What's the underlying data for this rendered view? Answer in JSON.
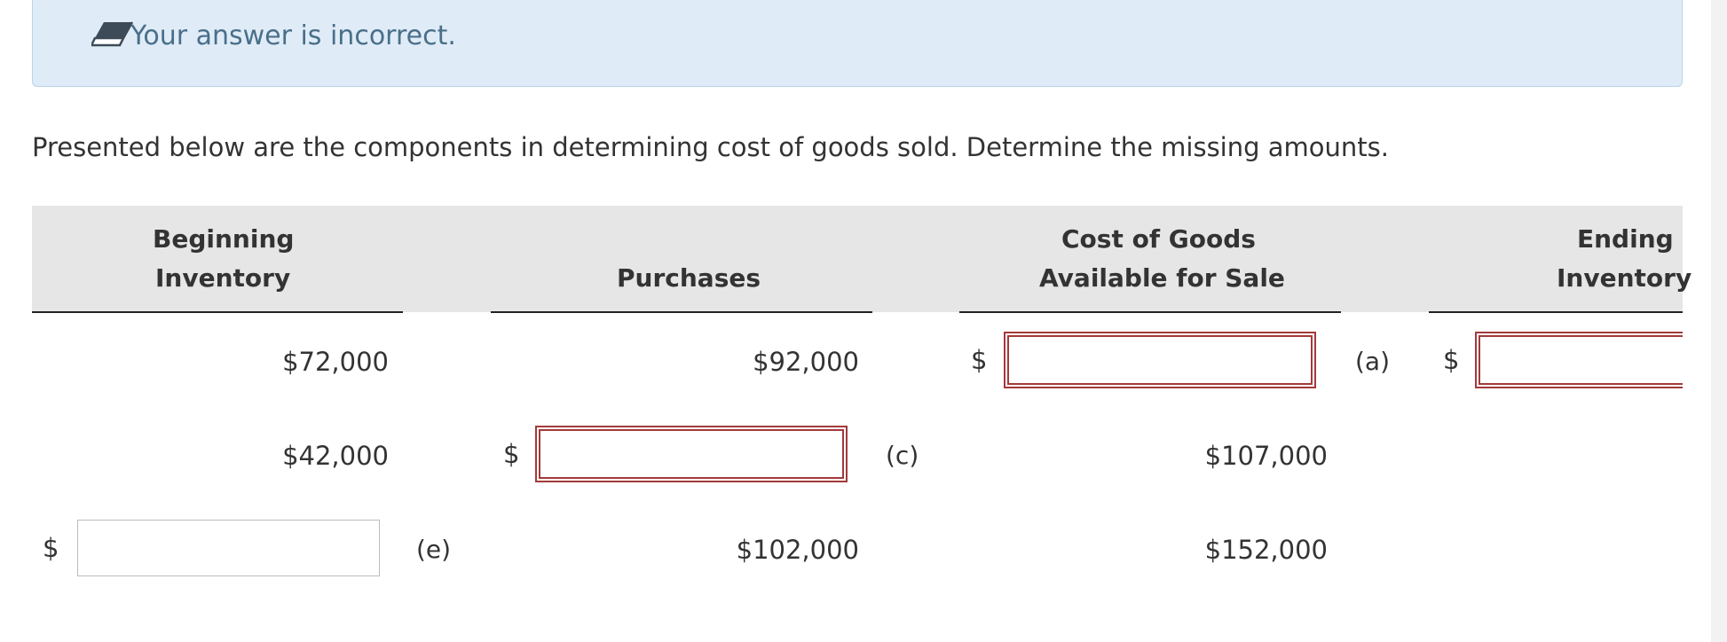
{
  "feedback": {
    "icon": "eraser-icon",
    "message": "Your answer is incorrect."
  },
  "question": {
    "prompt": "Presented below are the components in determining cost of goods sold. Determine the missing amounts."
  },
  "table": {
    "headers": {
      "beginning_inventory_line1": "Beginning",
      "beginning_inventory_line2": "Inventory",
      "purchases": "Purchases",
      "cogas_line1": "Cost of Goods",
      "cogas_line2": "Available for Sale",
      "ending_inventory_line1": "Ending",
      "ending_inventory_line2": "Inventory"
    },
    "currency_symbol": "$",
    "rows": [
      {
        "beginning_inventory": "$72,000",
        "purchases": "$92,000",
        "cogas_input": "",
        "cogas_label": "(a)",
        "ending_inventory_input": ""
      },
      {
        "beginning_inventory": "$42,000",
        "purchases_input": "",
        "purchases_label": "(c)",
        "cogas": "$107,000"
      },
      {
        "beginning_inventory_input": "",
        "beginning_inventory_label": "(e)",
        "purchases": "$102,000",
        "cogas": "$152,000"
      }
    ]
  },
  "colors": {
    "feedback_bg": "#dfecf7",
    "feedback_text": "#4a6f8a",
    "incorrect_border": "#a33a3a",
    "header_bg": "#e6e6e6"
  }
}
